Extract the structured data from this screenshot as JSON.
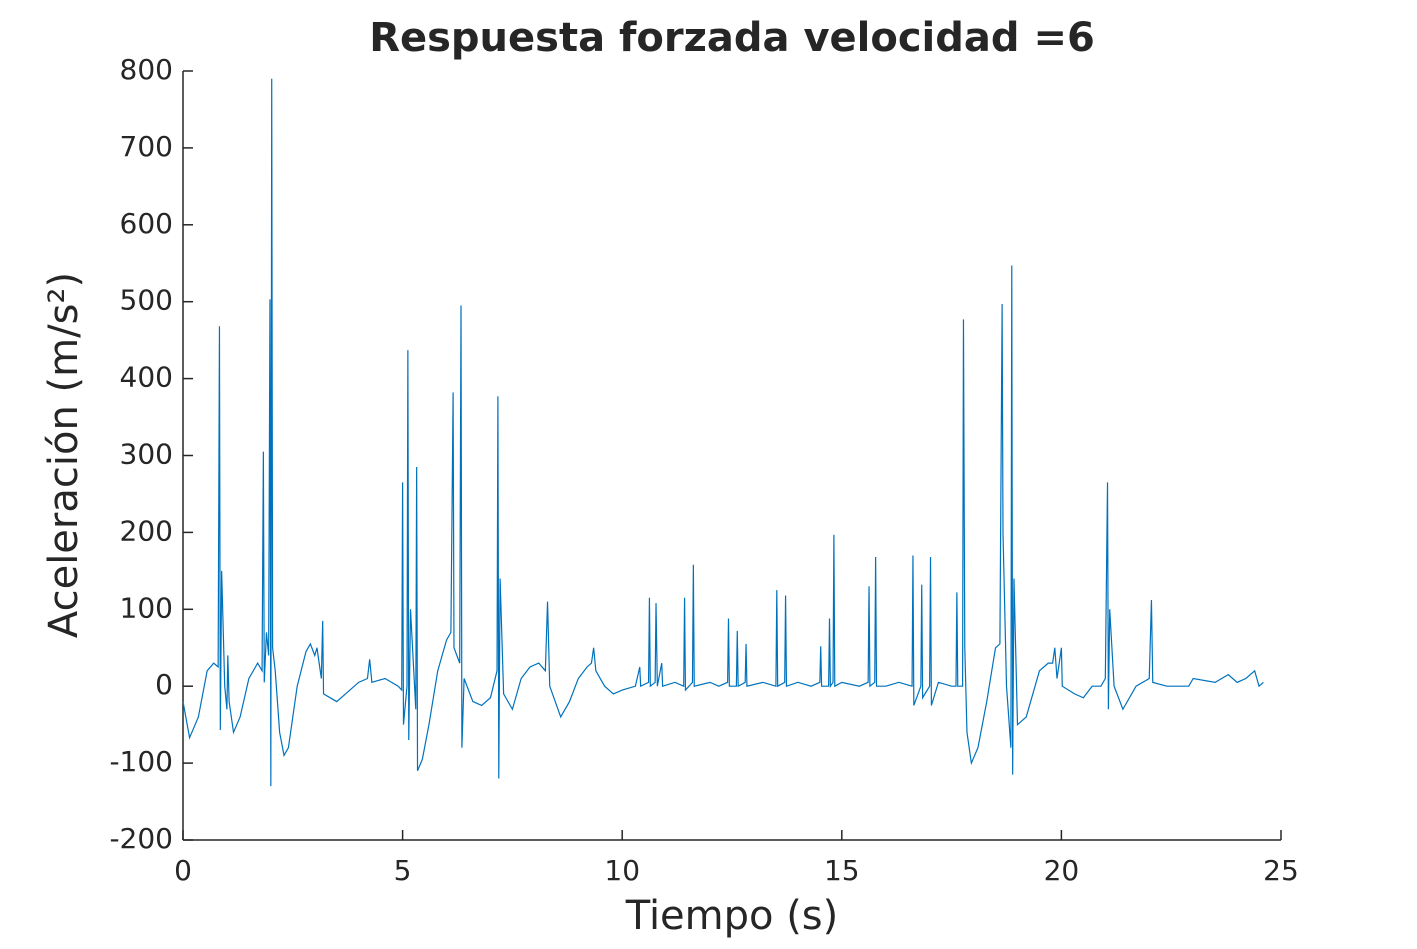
{
  "chart_data": {
    "type": "line",
    "title": "Respuesta forzada velocidad =6",
    "xlabel": "Tiempo (s)",
    "ylabel": "Aceleración (m/s²)",
    "xlim": [
      0,
      25
    ],
    "xticks": [
      0,
      5,
      10,
      15,
      20,
      25
    ],
    "ylim": [
      -200,
      800
    ],
    "yticks": [
      -200,
      -100,
      0,
      100,
      200,
      300,
      400,
      500,
      600,
      700,
      800
    ],
    "grid": false,
    "series": [
      {
        "color": "#0072bd",
        "x": [
          0,
          0.15,
          0.35,
          0.55,
          0.7,
          0.8,
          0.83,
          0.85,
          0.88,
          0.95,
          1.0,
          1.02,
          1.05,
          1.15,
          1.3,
          1.5,
          1.7,
          1.8,
          1.83,
          1.85,
          1.9,
          1.95,
          1.98,
          2.0,
          2.02,
          2.04,
          2.1,
          2.2,
          2.3,
          2.4,
          2.6,
          2.8,
          2.9,
          3.0,
          3.05,
          3.15,
          3.18,
          3.2,
          3.5,
          3.7,
          4.0,
          4.2,
          4.25,
          4.3,
          4.6,
          4.9,
          4.98,
          5.0,
          5.02,
          5.1,
          5.12,
          5.14,
          5.18,
          5.3,
          5.32,
          5.34,
          5.45,
          5.6,
          5.8,
          6.0,
          6.1,
          6.15,
          6.17,
          6.3,
          6.33,
          6.35,
          6.4,
          6.6,
          6.8,
          7.0,
          7.15,
          7.17,
          7.19,
          7.22,
          7.3,
          7.5,
          7.7,
          7.9,
          8.1,
          8.25,
          8.3,
          8.35,
          8.6,
          8.8,
          9.0,
          9.2,
          9.3,
          9.35,
          9.4,
          9.6,
          9.8,
          10.0,
          10.3,
          10.4,
          10.42,
          10.6,
          10.62,
          10.64,
          10.75,
          10.77,
          10.8,
          10.9,
          10.92,
          11.2,
          11.4,
          11.42,
          11.44,
          11.6,
          11.62,
          11.64,
          12.0,
          12.2,
          12.4,
          12.42,
          12.44,
          12.6,
          12.62,
          12.64,
          12.8,
          12.82,
          12.84,
          13.2,
          13.5,
          13.52,
          13.54,
          13.7,
          13.72,
          13.74,
          14.0,
          14.3,
          14.5,
          14.52,
          14.54,
          14.7,
          14.72,
          14.74,
          14.8,
          14.82,
          14.84,
          15.0,
          15.4,
          15.6,
          15.62,
          15.64,
          15.75,
          15.77,
          15.79,
          16.0,
          16.3,
          16.6,
          16.62,
          16.64,
          16.8,
          16.82,
          16.84,
          17.0,
          17.02,
          17.04,
          17.2,
          17.5,
          17.6,
          17.62,
          17.64,
          17.75,
          17.77,
          17.8,
          17.85,
          17.95,
          18.1,
          18.3,
          18.5,
          18.6,
          18.65,
          18.67,
          18.75,
          18.85,
          18.87,
          18.89,
          18.92,
          19.0,
          19.2,
          19.5,
          19.7,
          19.8,
          19.85,
          19.9,
          20.0,
          20.02,
          20.3,
          20.5,
          20.7,
          20.9,
          21.0,
          21.05,
          21.07,
          21.1,
          21.2,
          21.4,
          21.7,
          22.0,
          22.05,
          22.08,
          22.4,
          22.9,
          23.0,
          23.5,
          23.8,
          24.0,
          24.2,
          24.4,
          24.5,
          24.6
        ],
        "values": [
          -20,
          -67,
          -40,
          20,
          30,
          25,
          468,
          -57,
          150,
          0,
          -30,
          40,
          -20,
          -60,
          -40,
          10,
          30,
          20,
          305,
          5,
          70,
          40,
          503,
          -130,
          790,
          50,
          20,
          -60,
          -90,
          -80,
          0,
          45,
          55,
          40,
          50,
          10,
          85,
          -10,
          -20,
          -10,
          5,
          10,
          35,
          5,
          10,
          0,
          -5,
          265,
          -50,
          0,
          437,
          -70,
          100,
          -30,
          285,
          -110,
          -95,
          -50,
          20,
          60,
          70,
          382,
          50,
          30,
          495,
          -80,
          10,
          -20,
          -25,
          -15,
          20,
          377,
          -120,
          140,
          -10,
          -30,
          10,
          25,
          30,
          20,
          110,
          0,
          -40,
          -20,
          10,
          25,
          30,
          50,
          20,
          0,
          -10,
          -5,
          0,
          25,
          0,
          5,
          115,
          0,
          5,
          108,
          0,
          30,
          0,
          5,
          0,
          115,
          -5,
          5,
          158,
          0,
          5,
          0,
          5,
          88,
          0,
          0,
          72,
          0,
          5,
          55,
          0,
          5,
          0,
          125,
          0,
          5,
          118,
          0,
          5,
          0,
          5,
          52,
          0,
          0,
          88,
          0,
          5,
          197,
          0,
          5,
          0,
          5,
          130,
          0,
          5,
          168,
          0,
          0,
          5,
          0,
          170,
          -25,
          0,
          132,
          -15,
          0,
          168,
          -25,
          5,
          0,
          0,
          122,
          0,
          0,
          477,
          50,
          -60,
          -100,
          -80,
          -20,
          50,
          55,
          497,
          200,
          0,
          -80,
          547,
          -115,
          140,
          -50,
          -40,
          20,
          30,
          30,
          50,
          10,
          50,
          0,
          -10,
          -15,
          0,
          0,
          10,
          265,
          -30,
          100,
          0,
          -30,
          0,
          10,
          112,
          5,
          0,
          0,
          10,
          5,
          15,
          5,
          10,
          20,
          0,
          5
        ]
      }
    ]
  }
}
